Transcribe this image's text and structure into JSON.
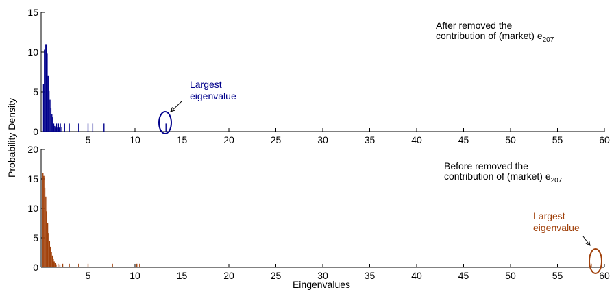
{
  "figure": {
    "ylabel": "Probability Density",
    "xlabel": "Eingenvalues"
  },
  "chart_data": [
    {
      "type": "bar",
      "panel": "top",
      "color": "#00008B",
      "xlim": [
        0,
        60
      ],
      "ylim": [
        0,
        15
      ],
      "xticks": [
        5,
        10,
        15,
        20,
        25,
        30,
        35,
        40,
        45,
        50,
        55,
        60
      ],
      "yticks": [
        0,
        5,
        10,
        15
      ],
      "annotation_text_line1": "After removed the",
      "annotation_text_line2": "contribution of (market) e",
      "annotation_subscript": "207",
      "callout_line1": "Largest",
      "callout_line2": "eigenvalue",
      "callout_x": 13.3,
      "bin_width": 0.1,
      "bins": [
        {
          "x": 0.25,
          "y": 6
        },
        {
          "x": 0.35,
          "y": 10.3
        },
        {
          "x": 0.45,
          "y": 11
        },
        {
          "x": 0.55,
          "y": 11
        },
        {
          "x": 0.65,
          "y": 9.8
        },
        {
          "x": 0.75,
          "y": 7
        },
        {
          "x": 0.85,
          "y": 5.1
        },
        {
          "x": 0.95,
          "y": 4
        },
        {
          "x": 1.05,
          "y": 3
        },
        {
          "x": 1.15,
          "y": 2.2
        },
        {
          "x": 1.25,
          "y": 1.8
        },
        {
          "x": 1.35,
          "y": 1
        },
        {
          "x": 1.45,
          "y": 0.7
        },
        {
          "x": 1.55,
          "y": 0.5
        },
        {
          "x": 1.65,
          "y": 1
        },
        {
          "x": 1.75,
          "y": 0.5
        },
        {
          "x": 1.85,
          "y": 1
        },
        {
          "x": 1.95,
          "y": 0.5
        },
        {
          "x": 2.05,
          "y": 1
        },
        {
          "x": 2.2,
          "y": 0.6
        },
        {
          "x": 2.5,
          "y": 1
        },
        {
          "x": 3.0,
          "y": 1
        },
        {
          "x": 4.0,
          "y": 1
        },
        {
          "x": 5.0,
          "y": 1
        },
        {
          "x": 5.5,
          "y": 1
        },
        {
          "x": 6.7,
          "y": 1
        },
        {
          "x": 13.3,
          "y": 1
        }
      ]
    },
    {
      "type": "bar",
      "panel": "bottom",
      "color": "#A0400A",
      "xlim": [
        0,
        60
      ],
      "ylim": [
        0,
        20
      ],
      "xticks": [
        5,
        10,
        15,
        20,
        25,
        30,
        35,
        40,
        45,
        50,
        55,
        60
      ],
      "yticks": [
        0,
        5,
        10,
        15,
        20
      ],
      "annotation_text_line1": "Before removed the",
      "annotation_text_line2": "contribution of (market) e",
      "annotation_subscript": "207",
      "callout_line1": "Largest",
      "callout_line2": "eigenvalue",
      "callout_x": 58.6,
      "bin_width": 0.1,
      "bins": [
        {
          "x": 0.2,
          "y": 16
        },
        {
          "x": 0.3,
          "y": 15.5
        },
        {
          "x": 0.4,
          "y": 13.5
        },
        {
          "x": 0.5,
          "y": 12
        },
        {
          "x": 0.6,
          "y": 9.5
        },
        {
          "x": 0.7,
          "y": 7.5
        },
        {
          "x": 0.8,
          "y": 5.8
        },
        {
          "x": 0.9,
          "y": 4.5
        },
        {
          "x": 1.0,
          "y": 3.5
        },
        {
          "x": 1.1,
          "y": 2.6
        },
        {
          "x": 1.2,
          "y": 2
        },
        {
          "x": 1.3,
          "y": 1.4
        },
        {
          "x": 1.4,
          "y": 1
        },
        {
          "x": 1.5,
          "y": 0.7
        },
        {
          "x": 1.6,
          "y": 0.5
        },
        {
          "x": 1.8,
          "y": 0.6
        },
        {
          "x": 2.0,
          "y": 0.5
        },
        {
          "x": 2.3,
          "y": 0.6
        },
        {
          "x": 3.0,
          "y": 0.6
        },
        {
          "x": 4.0,
          "y": 0.6
        },
        {
          "x": 5.0,
          "y": 0.6
        },
        {
          "x": 7.6,
          "y": 0.6
        },
        {
          "x": 10.2,
          "y": 0.6
        },
        {
          "x": 10.5,
          "y": 0.6
        },
        {
          "x": 58.6,
          "y": 0.6
        }
      ]
    }
  ]
}
